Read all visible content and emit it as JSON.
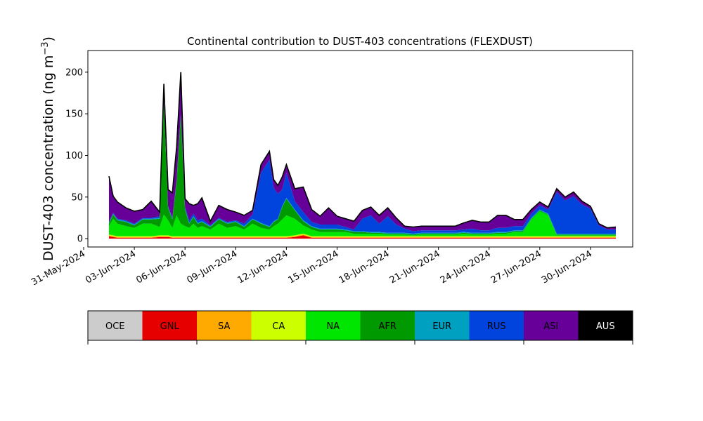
{
  "chart_data": {
    "type": "area",
    "title": "Continental contribution to DUST-403 concentrations (FLEXDUST)",
    "ylabel": "DUST-403 concentration (ng m",
    "ylabel_sup": "−3",
    "ylabel_close": ")",
    "xlabel": "",
    "ylim": [
      -10,
      226
    ],
    "xlim": [
      "2024-05-31T06:00",
      "2024-07-02T12:00"
    ],
    "stacked": true,
    "grid": false,
    "legend_placement": "bottom color bar",
    "x_tick_labels": [
      "31-May-2024",
      "03-Jun-2024",
      "06-Jun-2024",
      "09-Jun-2024",
      "12-Jun-2024",
      "15-Jun-2024",
      "18-Jun-2024",
      "21-Jun-2024",
      "24-Jun-2024",
      "27-Jun-2024",
      "30-Jun-2024"
    ],
    "y_ticks": [
      0,
      50,
      100,
      150,
      200
    ],
    "x": [
      "2024-06-01T12:00",
      "2024-06-01T18:00",
      "2024-06-02T00:00",
      "2024-06-02T12:00",
      "2024-06-03T00:00",
      "2024-06-03T12:00",
      "2024-06-04T00:00",
      "2024-06-04T12:00",
      "2024-06-04T18:00",
      "2024-06-05T00:00",
      "2024-06-05T06:00",
      "2024-06-05T12:00",
      "2024-06-05T18:00",
      "2024-06-06T00:00",
      "2024-06-06T06:00",
      "2024-06-06T12:00",
      "2024-06-06T18:00",
      "2024-06-07T00:00",
      "2024-06-07T12:00",
      "2024-06-08T00:00",
      "2024-06-08T12:00",
      "2024-06-09T00:00",
      "2024-06-09T12:00",
      "2024-06-10T00:00",
      "2024-06-10T12:00",
      "2024-06-11T00:00",
      "2024-06-11T06:00",
      "2024-06-11T12:00",
      "2024-06-11T18:00",
      "2024-06-12T00:00",
      "2024-06-12T12:00",
      "2024-06-13T00:00",
      "2024-06-13T12:00",
      "2024-06-14T00:00",
      "2024-06-14T12:00",
      "2024-06-15T00:00",
      "2024-06-15T12:00",
      "2024-06-16T00:00",
      "2024-06-16T12:00",
      "2024-06-17T00:00",
      "2024-06-17T12:00",
      "2024-06-18T00:00",
      "2024-06-18T12:00",
      "2024-06-19T00:00",
      "2024-06-19T12:00",
      "2024-06-20T00:00",
      "2024-06-20T12:00",
      "2024-06-21T00:00",
      "2024-06-21T12:00",
      "2024-06-22T00:00",
      "2024-06-22T12:00",
      "2024-06-23T00:00",
      "2024-06-23T12:00",
      "2024-06-24T00:00",
      "2024-06-24T12:00",
      "2024-06-25T00:00",
      "2024-06-25T12:00",
      "2024-06-26T00:00",
      "2024-06-26T12:00",
      "2024-06-27T00:00",
      "2024-06-27T12:00",
      "2024-06-28T00:00",
      "2024-06-28T12:00",
      "2024-06-29T00:00",
      "2024-06-29T12:00",
      "2024-06-30T00:00",
      "2024-06-30T12:00",
      "2024-07-01T00:00",
      "2024-07-01T12:00"
    ],
    "series": [
      {
        "name": "OCE",
        "color": "#cccccc",
        "values": [
          0,
          0,
          0,
          0,
          0,
          0,
          0,
          0,
          0,
          0,
          0,
          0,
          0,
          0,
          0,
          0,
          0,
          0,
          0,
          0,
          0,
          0,
          0,
          0,
          0,
          0,
          0,
          0,
          0,
          0,
          0,
          0,
          0,
          0,
          0,
          0,
          0,
          0,
          0,
          0,
          0,
          0,
          0,
          0,
          0,
          0,
          0,
          0,
          0,
          0,
          0,
          0,
          0,
          0,
          0,
          0,
          0,
          0,
          0,
          0,
          0,
          0,
          0,
          0,
          0,
          0,
          0,
          0,
          0
        ]
      },
      {
        "name": "GNL",
        "color": "#e60000",
        "values": [
          3,
          2,
          1,
          1,
          1,
          1,
          1,
          2,
          2,
          2,
          1,
          1,
          1,
          1,
          1,
          1,
          1,
          1,
          1,
          1,
          1,
          1,
          1,
          1,
          1,
          1,
          1,
          1,
          1,
          1,
          2,
          4,
          1,
          1,
          1,
          1,
          1,
          1,
          1,
          1,
          1,
          1,
          1,
          1,
          1,
          1,
          1,
          1,
          1,
          1,
          1,
          1,
          1,
          1,
          1,
          1,
          1,
          1,
          1,
          1,
          1,
          1,
          1,
          1,
          1,
          1,
          1,
          1,
          1
        ]
      },
      {
        "name": "SA",
        "color": "#ffaa00",
        "values": [
          1,
          1,
          1,
          1,
          1,
          1,
          1,
          1,
          1,
          1,
          1,
          1,
          1,
          1,
          1,
          1,
          1,
          1,
          1,
          1,
          1,
          1,
          1,
          1,
          1,
          1,
          1,
          1,
          1,
          1,
          1,
          1,
          1,
          1,
          1,
          1,
          1,
          1,
          1,
          1,
          1,
          1,
          1,
          1,
          1,
          1,
          1,
          1,
          1,
          1,
          1,
          1,
          1,
          1,
          1,
          1,
          1,
          1,
          1,
          1,
          1,
          1,
          1,
          1,
          1,
          1,
          1,
          1,
          1
        ]
      },
      {
        "name": "CA",
        "color": "#ccff00",
        "values": [
          1,
          1,
          1,
          1,
          1,
          1,
          1,
          1,
          1,
          1,
          1,
          1,
          1,
          1,
          1,
          1,
          1,
          1,
          1,
          1,
          1,
          1,
          1,
          1,
          1,
          1,
          1,
          1,
          1,
          1,
          1,
          1,
          1,
          1,
          1,
          1,
          1,
          1,
          1,
          1,
          1,
          1,
          1,
          1,
          1,
          1,
          1,
          1,
          1,
          1,
          1,
          1,
          1,
          1,
          1,
          1,
          1,
          1,
          1,
          1,
          1,
          1,
          1,
          1,
          1,
          1,
          1,
          1,
          1
        ]
      },
      {
        "name": "NA",
        "color": "#00e600",
        "values": [
          10,
          20,
          15,
          12,
          10,
          15,
          15,
          10,
          25,
          18,
          10,
          25,
          15,
          12,
          10,
          15,
          10,
          12,
          8,
          15,
          10,
          12,
          8,
          15,
          10,
          8,
          12,
          15,
          20,
          25,
          20,
          10,
          8,
          5,
          5,
          5,
          5,
          3,
          3,
          3,
          3,
          2,
          2,
          2,
          1,
          2,
          2,
          2,
          2,
          2,
          3,
          2,
          2,
          2,
          3,
          3,
          5,
          5,
          20,
          30,
          25,
          1,
          1,
          1,
          1,
          1,
          1,
          1,
          1
        ]
      },
      {
        "name": "AFR",
        "color": "#009900",
        "values": [
          3,
          5,
          4,
          5,
          3,
          5,
          5,
          10,
          135,
          15,
          10,
          40,
          130,
          20,
          5,
          8,
          5,
          5,
          3,
          5,
          5,
          5,
          3,
          5,
          5,
          3,
          5,
          5,
          15,
          20,
          10,
          5,
          3,
          3,
          3,
          3,
          2,
          2,
          2,
          1,
          1,
          1,
          1,
          1,
          1,
          1,
          1,
          1,
          1,
          1,
          1,
          1,
          1,
          1,
          1,
          1,
          1,
          1,
          1,
          1,
          1,
          1,
          1,
          1,
          1,
          1,
          1,
          1,
          1
        ]
      },
      {
        "name": "EUR",
        "color": "#00a0c0",
        "values": [
          1,
          1,
          1,
          1,
          1,
          1,
          1,
          1,
          1,
          1,
          1,
          1,
          1,
          1,
          1,
          1,
          1,
          1,
          1,
          1,
          1,
          1,
          1,
          1,
          1,
          1,
          1,
          1,
          1,
          1,
          1,
          1,
          1,
          1,
          1,
          1,
          1,
          1,
          1,
          1,
          1,
          1,
          1,
          1,
          1,
          1,
          1,
          1,
          1,
          1,
          1,
          1,
          1,
          1,
          1,
          1,
          1,
          1,
          1,
          1,
          1,
          1,
          1,
          1,
          1,
          1,
          1,
          1,
          1
        ]
      },
      {
        "name": "RUS",
        "color": "#0044dd",
        "values": [
          1,
          1,
          1,
          1,
          1,
          1,
          1,
          2,
          1,
          1,
          1,
          1,
          1,
          2,
          3,
          3,
          3,
          3,
          1,
          1,
          1,
          1,
          3,
          5,
          60,
          80,
          40,
          30,
          20,
          30,
          10,
          10,
          5,
          5,
          5,
          5,
          3,
          2,
          15,
          20,
          10,
          20,
          10,
          5,
          3,
          3,
          3,
          3,
          3,
          3,
          3,
          5,
          3,
          3,
          5,
          5,
          5,
          5,
          5,
          5,
          5,
          50,
          40,
          45,
          35,
          30,
          10,
          5,
          5
        ]
      },
      {
        "name": "ASI",
        "color": "#660099",
        "values": [
          55,
          20,
          20,
          15,
          15,
          10,
          20,
          5,
          20,
          20,
          30,
          40,
          50,
          10,
          20,
          10,
          20,
          25,
          5,
          15,
          15,
          10,
          10,
          5,
          10,
          10,
          10,
          10,
          15,
          10,
          15,
          30,
          15,
          10,
          20,
          10,
          10,
          10,
          10,
          10,
          10,
          10,
          8,
          3,
          5,
          5,
          5,
          5,
          5,
          5,
          8,
          10,
          10,
          10,
          15,
          15,
          8,
          8,
          5,
          4,
          3,
          4,
          4,
          5,
          4,
          3,
          2,
          2,
          3
        ]
      },
      {
        "name": "AUS",
        "color": "#000000",
        "values": [
          0,
          0,
          0,
          0,
          0,
          0,
          0,
          0,
          0,
          0,
          0,
          0,
          0,
          0,
          0,
          0,
          0,
          0,
          0,
          0,
          0,
          0,
          0,
          0,
          0,
          0,
          0,
          0,
          0,
          0,
          0,
          0,
          0,
          0,
          0,
          0,
          0,
          0,
          0,
          0,
          0,
          0,
          0,
          0,
          0,
          0,
          0,
          0,
          0,
          0,
          0,
          0,
          0,
          0,
          0,
          0,
          0,
          0,
          0,
          0,
          0,
          0,
          0,
          0,
          0,
          0,
          0,
          0,
          0
        ]
      }
    ]
  },
  "legend": {
    "items": [
      {
        "label": "OCE",
        "color": "#cccccc",
        "text_color": "#000000"
      },
      {
        "label": "GNL",
        "color": "#e60000",
        "text_color": "#000000"
      },
      {
        "label": "SA",
        "color": "#ffaa00",
        "text_color": "#000000"
      },
      {
        "label": "CA",
        "color": "#ccff00",
        "text_color": "#000000"
      },
      {
        "label": "NA",
        "color": "#00e600",
        "text_color": "#000000"
      },
      {
        "label": "AFR",
        "color": "#009900",
        "text_color": "#000000"
      },
      {
        "label": "EUR",
        "color": "#00a0c0",
        "text_color": "#000000"
      },
      {
        "label": "RUS",
        "color": "#0044dd",
        "text_color": "#000000"
      },
      {
        "label": "ASI",
        "color": "#660099",
        "text_color": "#000000"
      },
      {
        "label": "AUS",
        "color": "#000000",
        "text_color": "#ffffff"
      }
    ]
  }
}
